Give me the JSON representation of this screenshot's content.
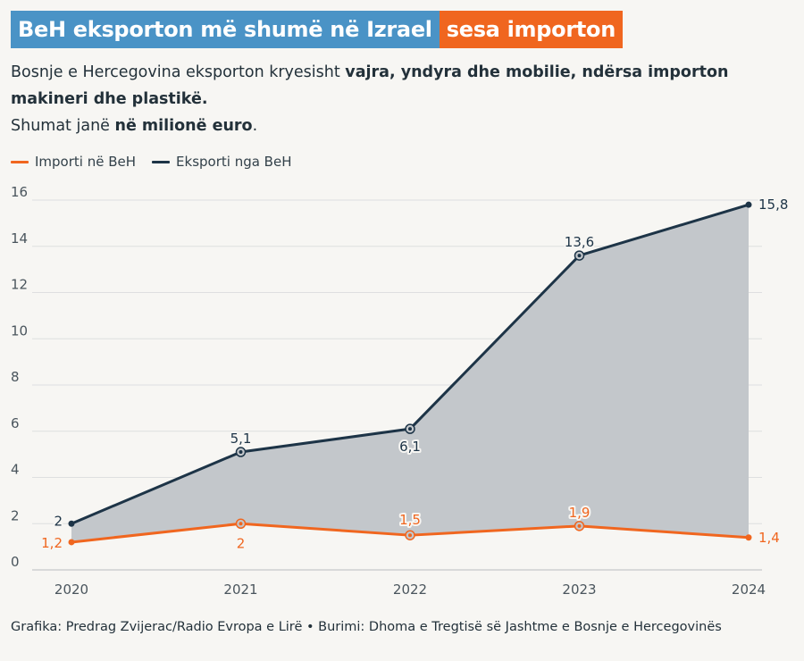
{
  "header": {
    "title_part1": "BeH eksporton më shumë në Izrael",
    "title_part2": "sesa importon",
    "subtitle_line1_pre": "Bosnje e Hercegovina eksporton kryesisht ",
    "subtitle_line1_bold": "vajra, yndyra dhe mobilie, ndërsa importon makineri dhe plastikë.",
    "subtitle_line2_pre": "Shumat janë ",
    "subtitle_line2_bold": "në milionë euro",
    "subtitle_line2_post": "."
  },
  "legend": {
    "import_label": "Importi në BeH",
    "export_label": "Eksporti nga BeH"
  },
  "footer": {
    "credit": "Grafika: Predrag Zvijerac/Radio Evropa e Lirë • Burimi: Dhoma e Tregtisë së Jashtme e Bosnje e Hercegovinës"
  },
  "colors": {
    "import": "#f0661f",
    "export": "#1d3447",
    "area": "#c3c7cb",
    "grid": "#dedfe0",
    "title_blue": "#4a93c6",
    "title_orange": "#f0661f"
  },
  "chart_data": {
    "type": "line",
    "categories": [
      "2020",
      "2021",
      "2022",
      "2023",
      "2024"
    ],
    "y_ticks": [
      "0",
      "2",
      "4",
      "6",
      "8",
      "10",
      "12",
      "14",
      "16"
    ],
    "ylim": [
      0,
      16
    ],
    "grid": true,
    "legend_position": "top-left",
    "series": [
      {
        "name": "Eksporti nga BeH",
        "values": [
          2,
          5.1,
          6.1,
          13.6,
          15.8
        ],
        "labels": [
          "2",
          "5,1",
          "6,1",
          "13,6",
          "15,8"
        ],
        "color": "#1d3447",
        "area": true
      },
      {
        "name": "Importi në BeH",
        "values": [
          1.2,
          2,
          1.5,
          1.9,
          1.4
        ],
        "labels": [
          "1,2",
          "2",
          "1,5",
          "1,9",
          "1,4"
        ],
        "color": "#f0661f",
        "area": false
      }
    ]
  }
}
